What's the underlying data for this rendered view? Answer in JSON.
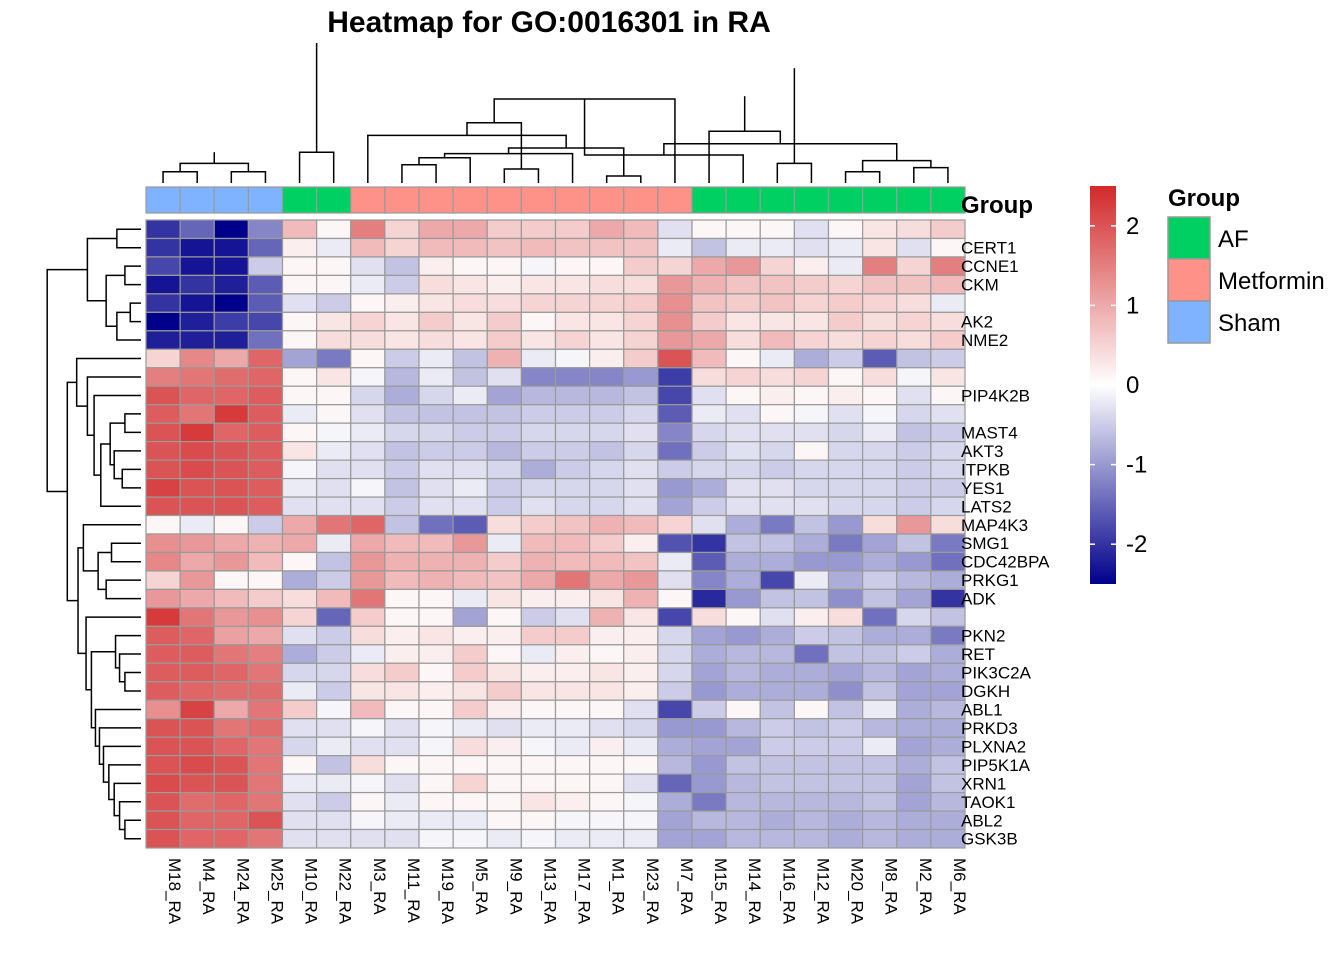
{
  "chart_data": {
    "type": "heatmap",
    "title": "Heatmap for GO:0016301 in RA",
    "columns": [
      "M18_RA",
      "M4_RA",
      "M24_RA",
      "M25_RA",
      "M10_RA",
      "M22_RA",
      "M3_RA",
      "M11_RA",
      "M19_RA",
      "M5_RA",
      "M9_RA",
      "M13_RA",
      "M17_RA",
      "M1_RA",
      "M23_RA",
      "M7_RA",
      "M15_RA",
      "M14_RA",
      "M16_RA",
      "M12_RA",
      "M20_RA",
      "M8_RA",
      "M2_RA",
      "M6_RA"
    ],
    "column_groups": [
      "Sham",
      "Sham",
      "Sham",
      "Sham",
      "AF",
      "AF",
      "Metformin",
      "Metformin",
      "Metformin",
      "Metformin",
      "Metformin",
      "Metformin",
      "Metformin",
      "Metformin",
      "Metformin",
      "Metformin",
      "AF",
      "AF",
      "AF",
      "AF",
      "AF",
      "AF",
      "AF",
      "AF"
    ],
    "row_labels": [
      "",
      "CERT1",
      "CCNE1",
      "CKM",
      "",
      "AK2",
      "NME2",
      "",
      "",
      "PIP4K2B",
      "",
      "MAST4",
      "AKT3",
      "ITPKB",
      "YES1",
      "LATS2",
      "MAP4K3",
      "SMG1",
      "CDC42BPA",
      "PRKG1",
      "ADK",
      "",
      "PKN2",
      "RET",
      "PIK3C2A",
      "DGKH",
      "ABL1",
      "PRKD3",
      "PLXNA2",
      "PIP5K1A",
      "XRN1",
      "TAOK1",
      "ABL2",
      "GSK3B"
    ],
    "values": [
      [
        -2.0,
        -1.5,
        -2.5,
        -1.2,
        0.8,
        0.1,
        1.5,
        0.5,
        1.0,
        1.0,
        0.6,
        0.6,
        0.6,
        1.0,
        0.8,
        -0.3,
        0.1,
        0.1,
        0.1,
        -0.3,
        0.1,
        0.3,
        0.4,
        0.6
      ],
      [
        -2.0,
        -2.3,
        -2.3,
        -1.5,
        0.2,
        -0.2,
        0.8,
        0.5,
        0.8,
        0.8,
        0.7,
        0.8,
        0.7,
        0.7,
        0.7,
        -0.2,
        -0.6,
        -0.2,
        -0.2,
        -0.3,
        -0.2,
        0.3,
        -0.3,
        0.1
      ],
      [
        -1.8,
        -2.3,
        -2.3,
        -0.5,
        0.1,
        0.1,
        -0.3,
        -0.6,
        0.2,
        0.1,
        0.1,
        -0.1,
        0.1,
        0.1,
        0.6,
        0.5,
        1.0,
        1.2,
        0.5,
        0.2,
        -0.2,
        1.5,
        0.5,
        1.5
      ],
      [
        -2.3,
        -2.0,
        -2.2,
        -1.6,
        0.1,
        0.1,
        -0.2,
        -0.5,
        0.4,
        0.3,
        0.2,
        0.3,
        0.3,
        0.4,
        0.4,
        1.2,
        0.9,
        0.7,
        0.7,
        0.6,
        0.5,
        0.7,
        0.7,
        0.8
      ],
      [
        -2.0,
        -2.3,
        -2.5,
        -1.6,
        -0.3,
        -0.5,
        0.1,
        0.2,
        0.3,
        0.4,
        0.4,
        0.5,
        0.5,
        0.5,
        0.6,
        1.3,
        0.7,
        0.6,
        0.7,
        0.5,
        0.6,
        0.5,
        0.4,
        -0.2
      ],
      [
        -2.5,
        -2.2,
        -1.9,
        -1.8,
        0.1,
        0.3,
        0.5,
        0.3,
        0.6,
        0.3,
        0.6,
        0.1,
        0.3,
        0.3,
        0.5,
        1.3,
        0.6,
        0.3,
        0.3,
        0.3,
        0.6,
        0.4,
        0.5,
        0.4
      ],
      [
        -2.2,
        -2.2,
        -2.2,
        -1.4,
        0.1,
        0.4,
        0.4,
        0.3,
        0.4,
        0.3,
        0.6,
        0.3,
        0.5,
        0.3,
        0.5,
        1.2,
        1.0,
        0.4,
        0.8,
        0.5,
        0.4,
        0.5,
        0.4,
        0.6
      ],
      [
        0.5,
        1.4,
        1.0,
        1.8,
        -0.9,
        -1.3,
        0.1,
        -0.5,
        -0.2,
        -0.6,
        0.9,
        -0.2,
        -0.1,
        0.2,
        0.6,
        2.0,
        0.8,
        0.1,
        -0.2,
        -0.8,
        -0.5,
        -1.6,
        -0.6,
        -0.5
      ],
      [
        1.5,
        1.6,
        1.7,
        1.8,
        0.1,
        0.3,
        -0.1,
        -0.7,
        -0.2,
        -0.6,
        -0.3,
        -1.2,
        -1.2,
        -1.2,
        -1.0,
        -1.9,
        0.4,
        0.5,
        0.4,
        0.5,
        0.1,
        0.4,
        -0.1,
        0.3
      ],
      [
        2.0,
        1.8,
        1.8,
        1.9,
        0.1,
        0.1,
        -0.4,
        -0.8,
        -0.4,
        -0.2,
        -0.9,
        -0.7,
        -0.7,
        -0.7,
        -0.6,
        -1.8,
        -0.3,
        0.1,
        0.2,
        0.1,
        0.2,
        0.1,
        -0.3,
        0.1
      ],
      [
        1.9,
        1.6,
        2.3,
        1.9,
        -0.2,
        0.1,
        -0.3,
        -0.6,
        -0.6,
        -0.6,
        -0.6,
        -0.5,
        -0.5,
        -0.5,
        -0.4,
        -1.6,
        -0.2,
        -0.3,
        0.1,
        -0.1,
        -0.3,
        -0.1,
        -0.4,
        -0.3
      ],
      [
        2.0,
        2.3,
        1.8,
        1.9,
        0.1,
        -0.1,
        -0.2,
        -0.4,
        -0.4,
        -0.5,
        -0.5,
        -0.4,
        -0.4,
        -0.4,
        -0.3,
        -1.2,
        -0.4,
        -0.3,
        -0.3,
        -0.3,
        -0.4,
        -0.2,
        -0.6,
        -0.5
      ],
      [
        2.0,
        2.1,
        2.0,
        1.9,
        0.3,
        -0.2,
        -0.3,
        -0.6,
        -0.5,
        -0.5,
        -0.7,
        -0.5,
        -0.5,
        -0.6,
        -0.4,
        -1.4,
        -0.5,
        -0.3,
        -0.4,
        0.1,
        -0.4,
        -0.4,
        -0.5,
        -0.4
      ],
      [
        2.0,
        2.1,
        2.0,
        1.9,
        -0.1,
        -0.3,
        -0.3,
        -0.5,
        -0.3,
        -0.3,
        -0.4,
        -0.8,
        -0.5,
        -0.4,
        -0.3,
        -0.5,
        -0.4,
        -0.4,
        -0.5,
        -0.4,
        -0.4,
        -0.4,
        -0.5,
        -0.4
      ],
      [
        2.2,
        2.0,
        2.0,
        1.9,
        -0.2,
        -0.3,
        -0.1,
        -0.6,
        -0.3,
        -0.2,
        -0.5,
        -0.4,
        -0.4,
        -0.4,
        -0.3,
        -1.0,
        -0.8,
        -0.3,
        -0.3,
        -0.4,
        -0.4,
        -0.4,
        -0.5,
        -0.5
      ],
      [
        2.0,
        2.0,
        2.0,
        1.9,
        -0.3,
        -0.3,
        -0.3,
        -0.5,
        -0.3,
        -0.3,
        -0.5,
        -0.3,
        -0.4,
        -0.4,
        -0.3,
        -0.9,
        -0.5,
        -0.3,
        -0.3,
        -0.3,
        -0.4,
        -0.4,
        -0.5,
        -0.4
      ],
      [
        0.1,
        -0.2,
        0.1,
        -0.5,
        1.0,
        1.6,
        1.8,
        -0.6,
        -1.4,
        -1.6,
        0.4,
        0.6,
        0.7,
        0.9,
        0.8,
        0.5,
        -0.3,
        -0.8,
        -1.3,
        -0.6,
        -1.0,
        0.4,
        1.2,
        0.4
      ],
      [
        1.3,
        1.2,
        1.0,
        0.9,
        1.0,
        -0.2,
        1.0,
        0.8,
        0.8,
        1.2,
        -0.2,
        0.8,
        0.8,
        0.6,
        0.2,
        -1.7,
        -2.0,
        -0.6,
        -0.6,
        -0.8,
        -1.3,
        -0.9,
        -0.6,
        -1.3
      ],
      [
        1.4,
        1.0,
        1.2,
        0.8,
        0.1,
        -0.6,
        1.2,
        0.9,
        0.9,
        0.9,
        0.6,
        0.9,
        0.8,
        0.8,
        0.7,
        -0.2,
        -1.6,
        -0.8,
        -0.8,
        -1.0,
        -1.0,
        -0.8,
        -1.0,
        -1.4
      ],
      [
        0.5,
        1.2,
        0.1,
        0.1,
        -0.8,
        -0.5,
        1.2,
        0.8,
        0.9,
        0.8,
        0.7,
        1.0,
        1.6,
        1.0,
        1.2,
        -0.3,
        -1.2,
        -0.8,
        -1.8,
        -0.2,
        -0.8,
        -0.5,
        -0.7,
        -0.8
      ],
      [
        1.2,
        1.0,
        0.8,
        0.6,
        0.4,
        0.8,
        1.6,
        0.1,
        0.1,
        -0.2,
        0.3,
        0.2,
        0.2,
        0.3,
        0.9,
        0.1,
        -2.1,
        -1.0,
        -0.6,
        -0.6,
        -1.1,
        -0.6,
        -0.9,
        -2.0
      ],
      [
        2.3,
        1.6,
        1.2,
        1.3,
        0.5,
        -1.5,
        0.6,
        0.1,
        0.1,
        -0.9,
        0.1,
        -0.5,
        -0.3,
        0.9,
        0.3,
        -1.8,
        0.4,
        0.1,
        -0.3,
        0.2,
        0.4,
        -1.4,
        -0.4,
        -0.6
      ],
      [
        1.9,
        1.8,
        1.1,
        1.0,
        -0.3,
        -0.5,
        0.4,
        0.2,
        0.3,
        0.2,
        0.2,
        0.6,
        0.6,
        0.2,
        0.2,
        -0.4,
        -0.9,
        -1.0,
        -0.8,
        -0.5,
        -0.6,
        -0.8,
        -0.8,
        -1.3
      ],
      [
        1.9,
        1.9,
        1.6,
        1.5,
        -0.8,
        -0.5,
        -0.2,
        0.2,
        0.2,
        0.6,
        0.1,
        -0.2,
        0.2,
        0.1,
        0.2,
        -0.4,
        -0.8,
        -0.7,
        -0.7,
        -1.4,
        -0.6,
        -0.6,
        -0.5,
        -0.8
      ],
      [
        1.9,
        1.9,
        1.8,
        1.6,
        -0.4,
        -0.4,
        0.4,
        0.6,
        0.1,
        0.6,
        0.3,
        0.2,
        0.2,
        0.3,
        0.2,
        -0.4,
        -0.9,
        -0.7,
        -0.8,
        -0.8,
        -0.9,
        -0.7,
        -0.9,
        -0.8
      ],
      [
        1.9,
        1.8,
        1.7,
        1.7,
        -0.2,
        -0.5,
        0.3,
        0.3,
        0.2,
        0.3,
        0.6,
        0.3,
        0.3,
        0.3,
        0.2,
        -0.5,
        -1.0,
        -0.8,
        -0.8,
        -0.8,
        -1.1,
        -0.6,
        -0.9,
        -0.9
      ],
      [
        1.3,
        2.2,
        1.0,
        1.6,
        0.6,
        -0.1,
        0.8,
        0.1,
        0.1,
        0.6,
        0.2,
        0.1,
        0.1,
        0.1,
        -0.3,
        -1.8,
        -0.5,
        0.1,
        -0.6,
        0.1,
        -0.6,
        -0.2,
        -0.8,
        -0.7
      ],
      [
        2.0,
        2.0,
        1.6,
        1.7,
        -0.3,
        -0.3,
        -0.1,
        -0.3,
        -0.1,
        -0.2,
        -0.3,
        -0.2,
        -0.2,
        -0.3,
        -0.4,
        -1.0,
        -1.0,
        -0.7,
        -0.5,
        -0.6,
        -0.5,
        -0.7,
        -0.8,
        -0.8
      ],
      [
        2.0,
        2.0,
        1.8,
        1.6,
        -0.4,
        -0.2,
        -0.3,
        -0.3,
        -0.1,
        0.4,
        0.2,
        -0.1,
        -0.2,
        0.2,
        -0.2,
        -0.8,
        -0.9,
        -0.9,
        -0.5,
        -0.5,
        -0.5,
        -0.2,
        -0.9,
        -0.8
      ],
      [
        2.0,
        2.1,
        2.0,
        1.6,
        0.1,
        -0.6,
        0.4,
        0.1,
        0.1,
        0.1,
        0.1,
        0.1,
        0.1,
        0.1,
        0.1,
        -0.7,
        -1.0,
        -0.6,
        -0.6,
        -0.6,
        -0.6,
        -0.6,
        -0.8,
        -0.6
      ],
      [
        2.1,
        2.0,
        2.0,
        1.6,
        -0.2,
        -0.2,
        -0.1,
        -0.3,
        0.1,
        0.5,
        0.1,
        0.1,
        0.1,
        0.1,
        -0.3,
        -1.5,
        -1.0,
        -0.7,
        -0.6,
        -0.6,
        -0.6,
        -0.6,
        -0.9,
        -0.6
      ],
      [
        2.0,
        1.7,
        1.8,
        1.6,
        -0.3,
        -0.5,
        0.1,
        -0.2,
        0.1,
        0.1,
        0.1,
        0.3,
        0.2,
        0.1,
        -0.1,
        -0.8,
        -1.3,
        -0.7,
        -0.7,
        -0.7,
        -0.7,
        -0.6,
        -0.9,
        -0.7
      ],
      [
        2.0,
        1.8,
        1.8,
        2.0,
        -0.3,
        -0.3,
        -0.1,
        -0.2,
        -0.2,
        -0.2,
        0.1,
        0.1,
        -0.1,
        -0.1,
        -0.1,
        -0.9,
        -0.7,
        -0.7,
        -0.8,
        -0.7,
        -0.8,
        -0.7,
        -0.8,
        -0.8
      ],
      [
        2.0,
        1.8,
        1.8,
        1.6,
        -0.3,
        -0.3,
        -0.3,
        -0.3,
        -0.1,
        -0.1,
        -0.2,
        -0.1,
        -0.2,
        -0.2,
        -0.2,
        -0.9,
        -0.9,
        -0.7,
        -0.7,
        -0.7,
        -0.8,
        -0.7,
        -0.8,
        -0.8
      ]
    ],
    "annotation_label": "Group",
    "color_scale": {
      "min": -2.5,
      "max": 2.5,
      "low": "#00008b",
      "mid": "#ffffff",
      "high": "#d2292a",
      "ticks": [
        "2",
        "1",
        "0",
        "-1",
        "-2"
      ],
      "tick_values": [
        2,
        1,
        0,
        -1,
        -2
      ]
    },
    "legend": {
      "title": "Group",
      "entries": [
        {
          "name": "AF",
          "color": "#00d061"
        },
        {
          "name": "Metformin",
          "color": "#fe9188"
        },
        {
          "name": "Sham",
          "color": "#7fb2ff"
        }
      ]
    },
    "col_dendrogram": [
      [
        0,
        1,
        0.08
      ],
      [
        2,
        3,
        0.08
      ],
      [
        24,
        25,
        0.14
      ],
      [
        26,
        27,
        0.22
      ],
      [
        4,
        5,
        0.22
      ],
      [
        10,
        11,
        0.1
      ],
      [
        7,
        8,
        0.13
      ],
      [
        30,
        9,
        0.18
      ],
      [
        31,
        12,
        0.21
      ],
      [
        13,
        14,
        0.05
      ],
      [
        33,
        32,
        0.25
      ],
      [
        6,
        34,
        0.34
      ],
      [
        29,
        35,
        0.43
      ],
      [
        18,
        19,
        0.14
      ],
      [
        36,
        15,
        0.6
      ],
      [
        17,
        38,
        0.2
      ],
      [
        20,
        21,
        0.08
      ],
      [
        22,
        23,
        0.11
      ],
      [
        40,
        41,
        0.16
      ],
      [
        39,
        42,
        0.28
      ],
      [
        16,
        43,
        0.37
      ],
      [
        44,
        45,
        0.62
      ],
      [
        37,
        46,
        0.82
      ],
      [
        28,
        47,
        1.0
      ]
    ],
    "row_dendrogram": [
      [
        0,
        1,
        0.18
      ],
      [
        2,
        3,
        0.12
      ],
      [
        4,
        5,
        0.08
      ],
      [
        6,
        36,
        0.18
      ],
      [
        35,
        37,
        0.26
      ],
      [
        34,
        38,
        0.4
      ],
      [
        13,
        14,
        0.14
      ],
      [
        12,
        40,
        0.2
      ],
      [
        10,
        11,
        0.12
      ],
      [
        42,
        41,
        0.23
      ],
      [
        15,
        43,
        0.3
      ],
      [
        9,
        44,
        0.35
      ],
      [
        8,
        45,
        0.4
      ],
      [
        7,
        46,
        0.48
      ],
      [
        17,
        18,
        0.22
      ],
      [
        19,
        20,
        0.26
      ],
      [
        48,
        49,
        0.32
      ],
      [
        16,
        50,
        0.43
      ],
      [
        32,
        33,
        0.12
      ],
      [
        31,
        52,
        0.16
      ],
      [
        30,
        53,
        0.2
      ],
      [
        29,
        54,
        0.24
      ],
      [
        28,
        55,
        0.28
      ],
      [
        27,
        56,
        0.31
      ],
      [
        26,
        57,
        0.34
      ],
      [
        24,
        25,
        0.12
      ],
      [
        23,
        59,
        0.16
      ],
      [
        22,
        60,
        0.19
      ],
      [
        58,
        61,
        0.37
      ],
      [
        21,
        62,
        0.41
      ],
      [
        51,
        63,
        0.47
      ],
      [
        47,
        64,
        0.55
      ],
      [
        39,
        65,
        0.7
      ]
    ]
  }
}
